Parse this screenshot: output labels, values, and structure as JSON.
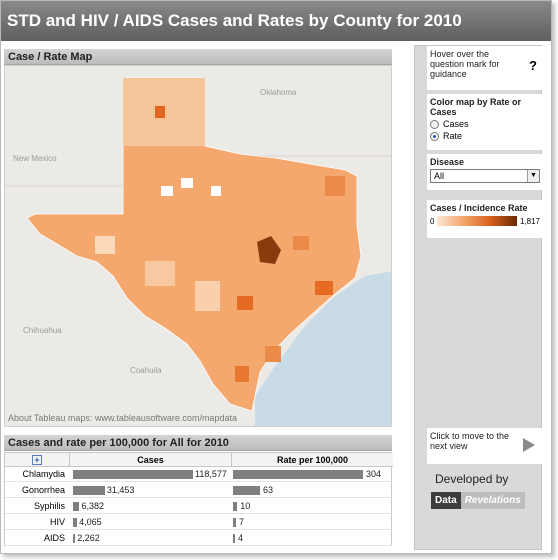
{
  "title": "STD and HIV / AIDS Cases and Rates by County for 2010",
  "map_section": {
    "header": "Case / Rate Map",
    "labels": {
      "oklahoma": "Oklahoma",
      "new_mexico": "New Mexico",
      "chihuahua": "Chihuahua",
      "coahuila": "Coahuila"
    },
    "credit": "About Tableau maps: www.tableausoftware.com/mapdata"
  },
  "sidebar": {
    "help_text": "Hover over the question mark for guidance",
    "help_icon": "?",
    "color_by_label": "Color map by Rate or Cases",
    "options": [
      {
        "label": "Cases",
        "selected": false
      },
      {
        "label": "Rate",
        "selected": true
      }
    ],
    "disease_label": "Disease",
    "disease_value": "All",
    "legend_title": "Cases / Incidence Rate",
    "legend_min": "0",
    "legend_max": "1,817",
    "next_text": "Click to move to the next view",
    "developed_by": "Developed by",
    "logo_data": "Data",
    "logo_revelations": "Revelations"
  },
  "table_section": {
    "header": "Cases and rate per 100,000 for All for 2010",
    "expand_icon": "+",
    "col_cases": "Cases",
    "col_rate": "Rate per 100,000"
  },
  "chart_data": {
    "type": "bar",
    "categories": [
      "Chlamydia",
      "Gonorrhea",
      "Syphilis",
      "HIV",
      "AIDS"
    ],
    "series": [
      {
        "name": "Cases",
        "values": [
          118577,
          31453,
          6382,
          4065,
          2262
        ],
        "labels": [
          "118,577",
          "31,453",
          "6,382",
          "4,065",
          "2,262"
        ]
      },
      {
        "name": "Rate per 100,000",
        "values": [
          304,
          63,
          10,
          7,
          4
        ],
        "labels": [
          "304",
          "63",
          "10",
          "7",
          "4"
        ]
      }
    ]
  }
}
